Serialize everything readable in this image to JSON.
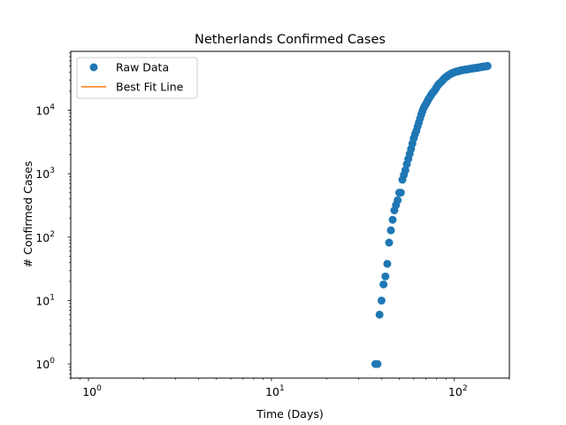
{
  "chart_data": {
    "type": "scatter",
    "title": "Netherlands Confirmed Cases",
    "xlabel": "Time (Days)",
    "ylabel": "# Confirmed Cases",
    "xscale": "log",
    "yscale": "log",
    "xlim": [
      0.8,
      200
    ],
    "ylim": [
      0.6,
      85000
    ],
    "grid": false,
    "legend_position": "upper-left",
    "xticks": [
      {
        "value": 1,
        "base": "10",
        "exp": "0"
      },
      {
        "value": 10,
        "base": "10",
        "exp": "1"
      },
      {
        "value": 100,
        "base": "10",
        "exp": "2"
      }
    ],
    "yticks": [
      {
        "value": 1,
        "base": "10",
        "exp": "0"
      },
      {
        "value": 10,
        "base": "10",
        "exp": "1"
      },
      {
        "value": 100,
        "base": "10",
        "exp": "2"
      },
      {
        "value": 1000,
        "base": "10",
        "exp": "3"
      },
      {
        "value": 10000,
        "base": "10",
        "exp": "4"
      }
    ],
    "legend": [
      {
        "label": "Raw Data",
        "marker": "circle",
        "color": "#1f77b4"
      },
      {
        "label": "Best Fit Line",
        "marker": "line",
        "color": "#ff7f0e"
      }
    ],
    "series": [
      {
        "name": "Raw Data",
        "color": "#1f77b4",
        "points": [
          [
            37,
            1
          ],
          [
            38,
            1
          ],
          [
            39,
            6
          ],
          [
            40,
            10
          ],
          [
            41,
            18
          ],
          [
            42,
            24
          ],
          [
            43,
            38
          ],
          [
            44,
            82
          ],
          [
            45,
            128
          ],
          [
            46,
            188
          ],
          [
            47,
            265
          ],
          [
            48,
            321
          ],
          [
            49,
            382
          ],
          [
            50,
            503
          ],
          [
            51,
            503
          ],
          [
            52,
            804
          ],
          [
            53,
            959
          ],
          [
            54,
            1135
          ],
          [
            55,
            1413
          ],
          [
            56,
            1705
          ],
          [
            57,
            2051
          ],
          [
            58,
            2460
          ],
          [
            59,
            2994
          ],
          [
            60,
            3631
          ],
          [
            61,
            4204
          ],
          [
            62,
            4749
          ],
          [
            63,
            5560
          ],
          [
            64,
            6412
          ],
          [
            65,
            7431
          ],
          [
            66,
            8603
          ],
          [
            67,
            9762
          ],
          [
            68,
            10866
          ],
          [
            69,
            11750
          ],
          [
            70,
            12595
          ],
          [
            71,
            13614
          ],
          [
            72,
            14697
          ],
          [
            73,
            15723
          ],
          [
            74,
            16627
          ],
          [
            75,
            17851
          ],
          [
            76,
            18803
          ],
          [
            77,
            19580
          ],
          [
            78,
            20549
          ],
          [
            79,
            21762
          ],
          [
            80,
            23097
          ],
          [
            81,
            24413
          ],
          [
            82,
            25587
          ],
          [
            83,
            26551
          ],
          [
            84,
            27419
          ],
          [
            85,
            28153
          ],
          [
            86,
            29214
          ],
          [
            87,
            30449
          ],
          [
            88,
            31589
          ],
          [
            89,
            32655
          ],
          [
            90,
            33405
          ],
          [
            91,
            34134
          ],
          [
            92,
            34842
          ],
          [
            93,
            35729
          ],
          [
            94,
            36535
          ],
          [
            95,
            37190
          ],
          [
            96,
            37845
          ],
          [
            97,
            38245
          ],
          [
            98,
            38802
          ],
          [
            99,
            39316
          ],
          [
            100,
            39791
          ],
          [
            101,
            40236
          ],
          [
            102,
            40571
          ],
          [
            103,
            40770
          ],
          [
            104,
            41087
          ],
          [
            105,
            41319
          ],
          [
            106,
            41774
          ],
          [
            107,
            42093
          ],
          [
            108,
            42382
          ],
          [
            109,
            42627
          ],
          [
            110,
            42788
          ],
          [
            111,
            42984
          ],
          [
            112,
            43211
          ],
          [
            113,
            43481
          ],
          [
            114,
            43681
          ],
          [
            115,
            43870
          ],
          [
            116,
            43995
          ],
          [
            117,
            44141
          ],
          [
            118,
            44249
          ],
          [
            119,
            44447
          ],
          [
            120,
            44700
          ],
          [
            121,
            44888
          ],
          [
            122,
            45064
          ],
          [
            123,
            45236
          ],
          [
            124,
            45445
          ],
          [
            125,
            45578
          ],
          [
            126,
            45768
          ],
          [
            127,
            45950
          ],
          [
            128,
            46126
          ],
          [
            129,
            46257
          ],
          [
            130,
            46442
          ],
          [
            131,
            46545
          ],
          [
            132,
            46647
          ],
          [
            133,
            46733
          ],
          [
            134,
            46942
          ],
          [
            135,
            47152
          ],
          [
            136,
            47335
          ],
          [
            137,
            47574
          ],
          [
            138,
            47739
          ],
          [
            139,
            47903
          ],
          [
            140,
            48087
          ],
          [
            141,
            48251
          ],
          [
            142,
            48461
          ],
          [
            143,
            48640
          ],
          [
            144,
            48783
          ],
          [
            145,
            48948
          ],
          [
            146,
            49087
          ],
          [
            147,
            49204
          ],
          [
            148,
            49319
          ],
          [
            149,
            49502
          ],
          [
            150,
            49658
          ],
          [
            151,
            49722
          ],
          [
            152,
            49914
          ]
        ]
      }
    ]
  }
}
